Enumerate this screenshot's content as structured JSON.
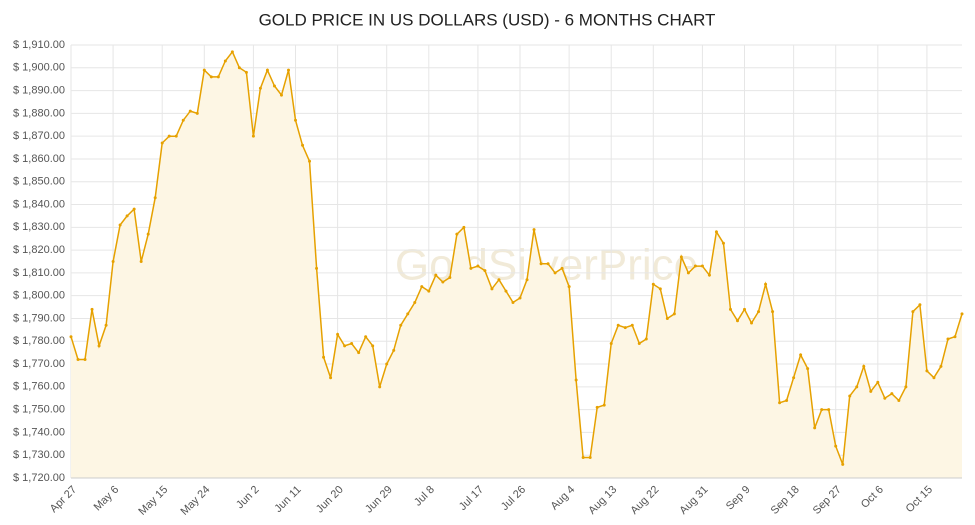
{
  "chart_data": {
    "type": "line",
    "title": "GOLD PRICE IN US DOLLARS (USD) - 6 MONTHS CHART",
    "watermark": "GoldSilverPrice",
    "color": "#e6a100",
    "area_color": "#fdf6e4",
    "grid": true,
    "categories": [
      "Apr 27",
      null,
      null,
      null,
      null,
      null,
      "May 6",
      null,
      null,
      null,
      null,
      null,
      null,
      "May 15",
      null,
      null,
      null,
      null,
      null,
      "May 24",
      null,
      null,
      null,
      null,
      null,
      null,
      "Jun 2",
      null,
      null,
      null,
      null,
      null,
      "Jun 11",
      null,
      null,
      null,
      null,
      null,
      "Jun 20",
      null,
      null,
      null,
      null,
      null,
      null,
      "Jun 29",
      null,
      null,
      null,
      null,
      null,
      "Jul 8",
      null,
      null,
      null,
      null,
      null,
      null,
      "Jul 17",
      null,
      null,
      null,
      null,
      null,
      "Jul 26",
      null,
      null,
      null,
      null,
      null,
      null,
      "Aug 4",
      null,
      null,
      null,
      null,
      null,
      "Aug 13",
      null,
      null,
      null,
      null,
      null,
      "Aug 22",
      null,
      null,
      null,
      null,
      null,
      null,
      "Aug 31",
      null,
      null,
      null,
      null,
      null,
      "Sep 9",
      null,
      null,
      null,
      null,
      null,
      null,
      "Sep 18",
      null,
      null,
      null,
      null,
      null,
      "Sep 27",
      null,
      null,
      null,
      null,
      null,
      "Oct 6",
      null,
      null,
      null,
      null,
      null,
      null,
      "Oct 15",
      null,
      null,
      null,
      null,
      null
    ],
    "values": [
      1782,
      1772,
      1772,
      1794,
      1778,
      1787,
      1815,
      1831,
      1835,
      1838,
      1815,
      1827,
      1843,
      1867,
      1870,
      1870,
      1877,
      1881,
      1880,
      1899,
      1896,
      1896,
      1903,
      1907,
      1900,
      1898,
      1870,
      1891,
      1899,
      1892,
      1888,
      1899,
      1877,
      1866,
      1859,
      1812,
      1773,
      1764,
      1783,
      1778,
      1779,
      1775,
      1782,
      1778,
      1760,
      1770,
      1776,
      1787,
      1792,
      1797,
      1804,
      1802,
      1809,
      1806,
      1808,
      1827,
      1830,
      1812,
      1813,
      1811,
      1803,
      1807,
      1802,
      1797,
      1799,
      1807,
      1829,
      1814,
      1814,
      1810,
      1812,
      1804,
      1763,
      1729,
      1729,
      1751,
      1752,
      1779,
      1787,
      1786,
      1787,
      1779,
      1781,
      1805,
      1803,
      1790,
      1792,
      1817,
      1810,
      1813,
      1813,
      1809,
      1828,
      1823,
      1794,
      1789,
      1794,
      1788,
      1793,
      1805,
      1793,
      1753,
      1754,
      1764,
      1774,
      1768,
      1742,
      1750,
      1750,
      1734,
      1726,
      1756,
      1760,
      1769,
      1758,
      1762,
      1755,
      1757,
      1754,
      1760,
      1793,
      1796,
      1767,
      1764,
      1769,
      1781,
      1782,
      1792
    ],
    "ylim": [
      1720,
      1910
    ],
    "yticks": [
      {
        "value": 1720,
        "label": "$ 1,720.00"
      },
      {
        "value": 1730,
        "label": "$ 1,730.00"
      },
      {
        "value": 1740,
        "label": "$ 1,740.00"
      },
      {
        "value": 1750,
        "label": "$ 1,750.00"
      },
      {
        "value": 1760,
        "label": "$ 1,760.00"
      },
      {
        "value": 1770,
        "label": "$ 1,770.00"
      },
      {
        "value": 1780,
        "label": "$ 1,780.00"
      },
      {
        "value": 1790,
        "label": "$ 1,790.00"
      },
      {
        "value": 1800,
        "label": "$ 1,800.00"
      },
      {
        "value": 1810,
        "label": "$ 1,810.00"
      },
      {
        "value": 1820,
        "label": "$ 1,820.00"
      },
      {
        "value": 1830,
        "label": "$ 1,830.00"
      },
      {
        "value": 1840,
        "label": "$ 1,840.00"
      },
      {
        "value": 1850,
        "label": "$ 1,850.00"
      },
      {
        "value": 1860,
        "label": "$ 1,860.00"
      },
      {
        "value": 1870,
        "label": "$ 1,870.00"
      },
      {
        "value": 1880,
        "label": "$ 1,880.00"
      },
      {
        "value": 1890,
        "label": "$ 1,890.00"
      },
      {
        "value": 1900,
        "label": "$ 1,900.00"
      },
      {
        "value": 1910,
        "label": "$ 1,910.00"
      }
    ]
  }
}
